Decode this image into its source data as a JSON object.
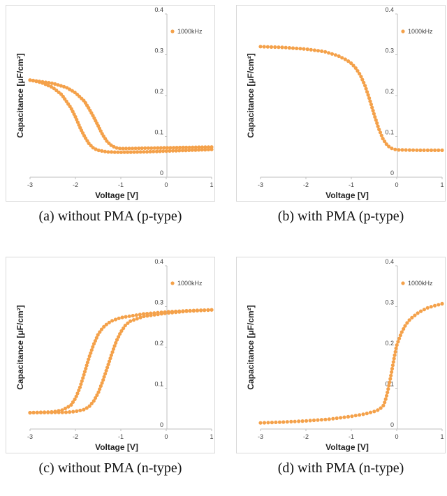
{
  "chart_data": [
    {
      "type": "scatter",
      "caption": "(a) without PMA (p-type)",
      "xlabel": "Voltage [V]",
      "ylabel": "Capacitance [μF/cm²]",
      "xlim": [
        -3,
        1
      ],
      "ylim": [
        0,
        0.4
      ],
      "xticks": [
        "-3",
        "-2",
        "-1",
        "0",
        "1"
      ],
      "yticks": [
        "0",
        "0.1",
        "0.2",
        "0.3",
        "0.4"
      ],
      "legend": "1000kHz",
      "legend_position": "top-right",
      "grid": false,
      "color": "#F4A14A",
      "curves": [
        {
          "x": [
            -3.0,
            -2.75,
            -2.5,
            -2.3,
            -2.1,
            -2.0,
            -1.9,
            -1.8,
            -1.7,
            -1.6,
            -1.5,
            -1.3,
            -1.0,
            -0.5,
            0.0,
            0.5,
            1.0
          ],
          "y": [
            0.238,
            0.232,
            0.22,
            0.202,
            0.17,
            0.148,
            0.122,
            0.1,
            0.082,
            0.071,
            0.066,
            0.062,
            0.061,
            0.062,
            0.064,
            0.066,
            0.068
          ]
        },
        {
          "x": [
            -3.0,
            -2.5,
            -2.2,
            -2.0,
            -1.8,
            -1.7,
            -1.6,
            -1.5,
            -1.4,
            -1.3,
            -1.2,
            -1.1,
            -1.0,
            -0.5,
            0.0,
            0.5,
            1.0
          ],
          "y": [
            0.238,
            0.23,
            0.22,
            0.207,
            0.186,
            0.168,
            0.148,
            0.126,
            0.104,
            0.087,
            0.077,
            0.072,
            0.07,
            0.071,
            0.072,
            0.073,
            0.074
          ]
        }
      ]
    },
    {
      "type": "scatter",
      "caption": "(b) with PMA (p-type)",
      "xlabel": "Voltage [V]",
      "ylabel": "Capacitance [μF/cm²]",
      "xlim": [
        -3,
        1
      ],
      "ylim": [
        0,
        0.4
      ],
      "xticks": [
        "-3",
        "-2",
        "-1",
        "0",
        "1"
      ],
      "yticks": [
        "0",
        "0.1",
        "0.2",
        "0.3",
        "0.4"
      ],
      "legend": "1000kHz",
      "legend_position": "top-right",
      "grid": false,
      "color": "#F4A14A",
      "curves": [
        {
          "x": [
            -3.0,
            -2.5,
            -2.0,
            -1.6,
            -1.3,
            -1.1,
            -1.0,
            -0.9,
            -0.8,
            -0.7,
            -0.6,
            -0.5,
            -0.4,
            -0.3,
            -0.2,
            -0.1,
            0.0,
            0.5,
            1.0
          ],
          "y": [
            0.32,
            0.318,
            0.314,
            0.308,
            0.298,
            0.287,
            0.279,
            0.267,
            0.25,
            0.225,
            0.192,
            0.155,
            0.12,
            0.093,
            0.077,
            0.07,
            0.067,
            0.066,
            0.066
          ]
        }
      ]
    },
    {
      "type": "scatter",
      "caption": "(c) without PMA (n-type)",
      "xlabel": "Voltage [V]",
      "ylabel": "Capacitance [μF/cm²]",
      "xlim": [
        -3,
        1
      ],
      "ylim": [
        0,
        0.4
      ],
      "xticks": [
        "-3",
        "-2",
        "-1",
        "0",
        "1"
      ],
      "yticks": [
        "0",
        "0.1",
        "0.2",
        "0.3",
        "0.4"
      ],
      "legend": "1000kHz",
      "legend_position": "top-right",
      "grid": false,
      "color": "#F4A14A",
      "curves": [
        {
          "x": [
            -3.0,
            -2.5,
            -2.3,
            -2.1,
            -2.0,
            -1.9,
            -1.8,
            -1.7,
            -1.6,
            -1.5,
            -1.4,
            -1.3,
            -1.2,
            -1.0,
            -0.5,
            0.0,
            0.5,
            1.0
          ],
          "y": [
            0.04,
            0.042,
            0.046,
            0.058,
            0.075,
            0.102,
            0.138,
            0.175,
            0.207,
            0.232,
            0.248,
            0.258,
            0.265,
            0.273,
            0.282,
            0.287,
            0.29,
            0.292
          ]
        },
        {
          "x": [
            -3.0,
            -2.2,
            -2.0,
            -1.8,
            -1.7,
            -1.6,
            -1.5,
            -1.4,
            -1.3,
            -1.2,
            -1.1,
            -1.0,
            -0.9,
            -0.8,
            -0.5,
            0.0,
            0.5,
            1.0
          ],
          "y": [
            0.04,
            0.041,
            0.043,
            0.048,
            0.055,
            0.068,
            0.088,
            0.117,
            0.15,
            0.184,
            0.215,
            0.238,
            0.254,
            0.264,
            0.276,
            0.284,
            0.289,
            0.292
          ]
        }
      ]
    },
    {
      "type": "scatter",
      "caption": "(d) with PMA (n-type)",
      "xlabel": "Voltage [V]",
      "ylabel": "Capacitance [μF/cm²]",
      "xlim": [
        -3,
        1
      ],
      "ylim": [
        0,
        0.4
      ],
      "xticks": [
        "-3",
        "-2",
        "-1",
        "0",
        "1"
      ],
      "yticks": [
        "0",
        "0.1",
        "0.2",
        "0.3",
        "0.4"
      ],
      "legend": "1000kHz",
      "legend_position": "top-right",
      "grid": false,
      "color": "#F4A14A",
      "curves": [
        {
          "x": [
            -3.0,
            -2.5,
            -2.0,
            -1.5,
            -1.0,
            -0.7,
            -0.5,
            -0.4,
            -0.3,
            -0.25,
            -0.2,
            -0.15,
            -0.1,
            -0.05,
            0.0,
            0.1,
            0.2,
            0.3,
            0.5,
            0.7,
            1.0
          ],
          "y": [
            0.015,
            0.017,
            0.02,
            0.024,
            0.031,
            0.037,
            0.043,
            0.047,
            0.056,
            0.07,
            0.092,
            0.118,
            0.148,
            0.178,
            0.205,
            0.235,
            0.256,
            0.27,
            0.287,
            0.298,
            0.307
          ]
        }
      ]
    }
  ]
}
